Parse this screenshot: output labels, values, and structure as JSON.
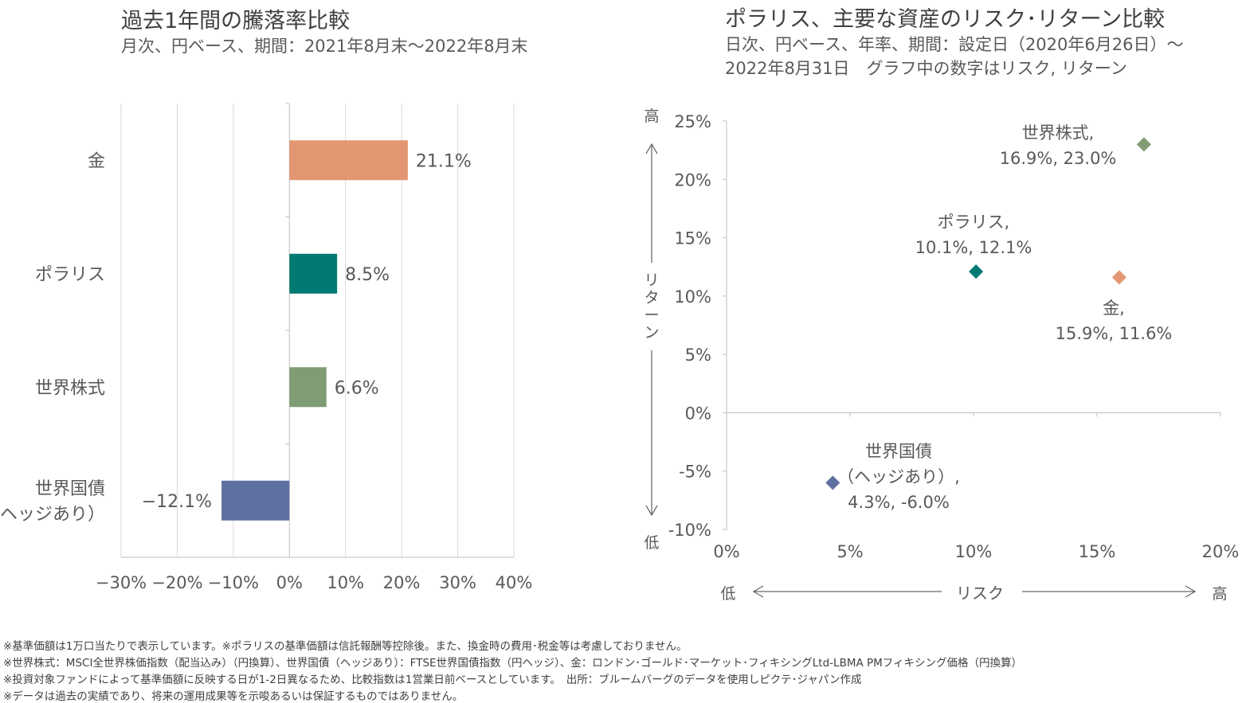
{
  "chart_data": [
    {
      "type": "bar",
      "orientation": "horizontal",
      "title": "過去1年間の騰落率比較",
      "subtitle": "月次、円ベース、期間：2021年8月末～2022年8月末",
      "categories": [
        "金",
        "ポラリス",
        "世界株式",
        "世界国債\n（ヘッジあり）"
      ],
      "values": [
        21.1,
        8.5,
        6.6,
        -12.1
      ],
      "data_labels": [
        "21.1%",
        "8.5%",
        "6.6%",
        "−12.1%"
      ],
      "colors": [
        "#E39672",
        "#007A72",
        "#7F9C74",
        "#5E71A0"
      ],
      "xlim": [
        -30,
        40
      ],
      "xticks": [
        "−30%",
        "−20%",
        "−10%",
        "0%",
        "10%",
        "20%",
        "30%",
        "40%"
      ],
      "grid": true
    },
    {
      "type": "scatter",
      "title": "ポラリス、主要な資産のリスク･リターン比較",
      "subtitle": [
        "日次、円ベース、年率、期間：設定日（2020年6月26日）～",
        "2022年8月31日　グラフ中の数字はリスク, リターン"
      ],
      "xlabel": "リスク",
      "ylabel": "リターン",
      "x_low": "低",
      "x_high": "高",
      "y_low": "低",
      "y_high": "高",
      "xlim": [
        0,
        20
      ],
      "ylim": [
        -10,
        25
      ],
      "xticks": [
        "0%",
        "5%",
        "10%",
        "15%",
        "20%"
      ],
      "yticks": [
        "25%",
        "20%",
        "15%",
        "10%",
        "5%",
        "0%",
        "-5%",
        "-10%"
      ],
      "points": [
        {
          "label": [
            "世界株式,",
            "16.9%, 23.0%"
          ],
          "x": 16.9,
          "y": 23.0,
          "color": "#7F9C74"
        },
        {
          "label": [
            "ポラリス,",
            "10.1%, 12.1%"
          ],
          "x": 10.1,
          "y": 12.1,
          "color": "#007A72"
        },
        {
          "label": [
            "金,",
            "15.9%, 11.6%"
          ],
          "x": 15.9,
          "y": 11.6,
          "color": "#E39672"
        },
        {
          "label": [
            "世界国債",
            "（ヘッジあり）,",
            "4.3%, -6.0%"
          ],
          "x": 4.3,
          "y": -6.0,
          "color": "#5E71A0"
        }
      ]
    }
  ],
  "notes": [
    "※基準価額は1万口当たりで表示しています。※ポラリスの基準価額は信託報酬等控除後。また、換金時の費用･税金等は考慮しておりません。",
    "※世界株式：MSCI全世界株価指数（配当込み）（円換算）、世界国債（ヘッジあり）：FTSE世界国債指数（円ヘッジ）、金：ロンドン･ゴールド･マーケット･フィキシングLtd-LBMA PMフィキシング価格（円換算）",
    "※投資対象ファンドによって基準価額に反映する日が1-2日異なるため、比較指数は1営業日前ベースとしています。　出所：ブルームバーグのデータを使用しピクテ･ジャパン作成",
    "※データは過去の実績であり、将来の運用成果等を示唆あるいは保証するものではありません。"
  ]
}
